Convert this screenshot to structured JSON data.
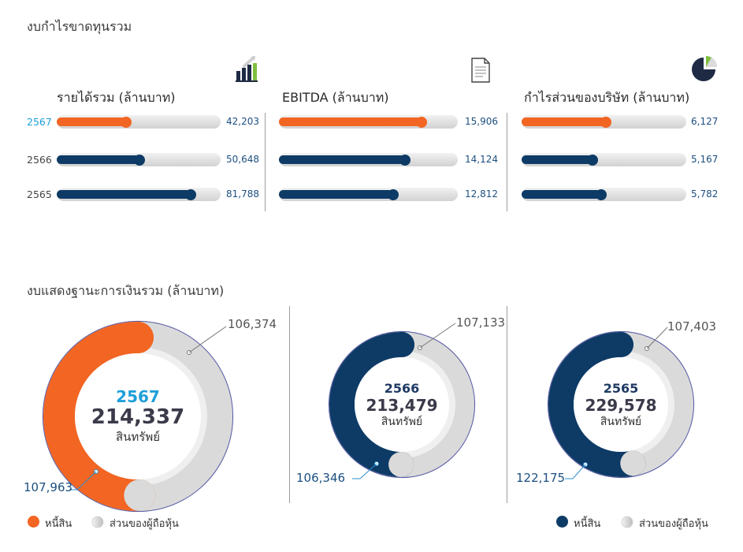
{
  "colors": {
    "orange": "#f26522",
    "navy": "#0d3b66",
    "track": "#d9d9d9",
    "year_highlight": "#1e9fd9",
    "value_text": "#1c4f80"
  },
  "income_section": {
    "title": "งบกำไรขาดทุนรวม"
  },
  "balance_section": {
    "title": "งบแสดงฐานะการเงินรวม (ล้านบาท)"
  },
  "panels": [
    {
      "icon": "bar-chart-icon"
    },
    {
      "icon": "document-icon"
    },
    {
      "icon": "pie-chart-icon"
    }
  ],
  "rings": [
    {
      "callout_equity": "106,374",
      "callout_liabilities": "107,963"
    },
    {
      "callout_equity": "107,133",
      "callout_liabilities": "106,346"
    },
    {
      "callout_equity": "107,403",
      "callout_liabilities": "122,175"
    }
  ],
  "legend": {
    "liabilities": "หนี้สิน",
    "equity": "ส่วนของผู้ถือหุ้น"
  },
  "chart_data": [
    {
      "type": "bar",
      "title": "รายได้รวม (ล้านบาท)",
      "categories": [
        "2567",
        "2566",
        "2565"
      ],
      "values": [
        42203,
        50648,
        81788
      ],
      "labels": [
        "42,203",
        "50,648",
        "81,788"
      ],
      "xlim": [
        0,
        100000
      ]
    },
    {
      "type": "bar",
      "title": "EBITDA (ล้านบาท)",
      "categories": [
        "2567",
        "2566",
        "2565"
      ],
      "values": [
        15906,
        14124,
        12812
      ],
      "labels": [
        "15,906",
        "14,124",
        "12,812"
      ],
      "xlim": [
        0,
        20000
      ]
    },
    {
      "type": "bar",
      "title": "กำไรส่วนของบริษัท (ล้านบาท)",
      "categories": [
        "2567",
        "2566",
        "2565"
      ],
      "values": [
        6127,
        5167,
        5782
      ],
      "labels": [
        "6,127",
        "5,167",
        "5,782"
      ],
      "xlim": [
        0,
        12000
      ]
    },
    {
      "type": "pie",
      "year": "2567",
      "total": "214,337",
      "total_label": "สินทรัพย์",
      "segments": [
        {
          "name": "หนี้สิน",
          "value": 107963
        },
        {
          "name": "ส่วนของผู้ถือหุ้น",
          "value": 106374
        }
      ]
    },
    {
      "type": "pie",
      "year": "2566",
      "total": "213,479",
      "total_label": "สินทรัพย์",
      "segments": [
        {
          "name": "หนี้สิน",
          "value": 106346
        },
        {
          "name": "ส่วนของผู้ถือหุ้น",
          "value": 107133
        }
      ]
    },
    {
      "type": "pie",
      "year": "2565",
      "total": "229,578",
      "total_label": "สินทรัพย์",
      "segments": [
        {
          "name": "หนี้สิน",
          "value": 122175
        },
        {
          "name": "ส่วนของผู้ถือหุ้น",
          "value": 107403
        }
      ]
    }
  ]
}
